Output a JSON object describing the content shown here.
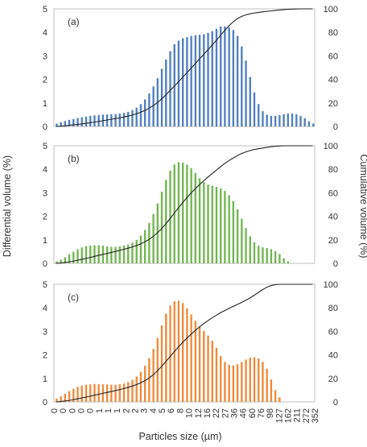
{
  "xlabel": "Particles size (µm)",
  "ylabel_left": "Differential volume (%)",
  "ylabel_right": "Cumulative volume (%)",
  "chart_data": [
    {
      "type": "bar",
      "panel": "(a)",
      "series": [
        {
          "name": "",
          "kind": "bar",
          "color": "#4f7fc0",
          "values": [
            0.12,
            0.18,
            0.23,
            0.28,
            0.32,
            0.36,
            0.39,
            0.42,
            0.45,
            0.47,
            0.49,
            0.5,
            0.51,
            0.52,
            0.53,
            0.55,
            0.58,
            0.62,
            0.7,
            0.8,
            0.95,
            1.15,
            1.4,
            1.7,
            2.05,
            2.45,
            2.85,
            3.2,
            3.5,
            3.65,
            3.75,
            3.8,
            3.85,
            3.88,
            3.9,
            3.92,
            3.98,
            4.05,
            4.15,
            4.25,
            4.25,
            4.22,
            4.1,
            3.85,
            3.4,
            2.8,
            2.1,
            1.45,
            0.95,
            0.65,
            0.5,
            0.45,
            0.45,
            0.48,
            0.52,
            0.55,
            0.55,
            0.52,
            0.45,
            0.35,
            0.22,
            0.12
          ]
        },
        {
          "name": "",
          "kind": "line",
          "color": "#222222",
          "values": [
            0,
            0.2,
            0.5,
            0.9,
            1.3,
            1.7,
            2.1,
            2.6,
            3.1,
            3.6,
            4.2,
            4.8,
            5.4,
            6,
            6.6,
            7.2,
            7.9,
            8.7,
            9.6,
            10.6,
            11.9,
            13.4,
            15.2,
            17.4,
            20,
            23,
            26.4,
            30.1,
            33.8,
            37.5,
            41.4,
            45.2,
            49.1,
            53,
            56.9,
            60.8,
            64.7,
            68.7,
            72.8,
            77,
            81.2,
            85.2,
            88.6,
            91.3,
            93.4,
            94.8,
            95.7,
            96.4,
            96.9,
            97.4,
            97.8,
            98.2,
            98.6,
            99,
            99.3,
            99.6,
            99.8,
            99.9,
            100,
            100,
            100,
            100
          ]
        }
      ]
    },
    {
      "type": "bar",
      "panel": "(b)",
      "series": [
        {
          "name": "",
          "kind": "bar",
          "color": "#70b550",
          "values": [
            0.08,
            0.16,
            0.26,
            0.38,
            0.5,
            0.6,
            0.68,
            0.73,
            0.76,
            0.77,
            0.77,
            0.75,
            0.72,
            0.7,
            0.7,
            0.72,
            0.76,
            0.8,
            0.88,
            1,
            1.18,
            1.42,
            1.72,
            2.1,
            2.55,
            3.05,
            3.55,
            3.95,
            4.2,
            4.3,
            4.28,
            4.2,
            4.05,
            3.85,
            3.62,
            3.45,
            3.35,
            3.3,
            3.25,
            3.18,
            3.08,
            2.9,
            2.65,
            2.3,
            1.9,
            1.5,
            1.15,
            0.9,
            0.75,
            0.68,
            0.65,
            0.6,
            0.52,
            0.4,
            0.22,
            0.08
          ]
        },
        {
          "name": "",
          "kind": "line",
          "color": "#222222",
          "values": [
            0,
            0.3,
            0.7,
            1.2,
            1.8,
            2.5,
            3.3,
            4.1,
            4.9,
            5.8,
            6.7,
            7.5,
            8.3,
            9.2,
            10,
            10.9,
            11.8,
            12.8,
            13.8,
            15,
            16.4,
            18.1,
            20.1,
            22.6,
            25.6,
            29.1,
            33.1,
            37.5,
            42.1,
            46.7,
            51.1,
            55.4,
            59.4,
            63.1,
            66.6,
            69.8,
            73,
            76,
            78.9,
            81.8,
            84.6,
            87.1,
            89.4,
            91.4,
            93.2,
            94.6,
            95.8,
            96.7,
            97.4,
            98,
            98.6,
            99.1,
            99.5,
            99.8,
            100,
            100,
            100,
            100,
            100,
            100,
            100,
            100
          ]
        }
      ]
    },
    {
      "type": "bar",
      "panel": "(c)",
      "series": [
        {
          "name": "",
          "kind": "bar",
          "color": "#ee8a3a",
          "values": [
            0.14,
            0.24,
            0.35,
            0.46,
            0.56,
            0.64,
            0.7,
            0.73,
            0.75,
            0.76,
            0.76,
            0.75,
            0.74,
            0.73,
            0.73,
            0.75,
            0.78,
            0.84,
            0.94,
            1.08,
            1.28,
            1.54,
            1.86,
            2.25,
            2.72,
            3.25,
            3.75,
            4.1,
            4.28,
            4.3,
            4.2,
            3.98,
            3.72,
            3.45,
            3.22,
            3.02,
            2.82,
            2.6,
            2.3,
            1.95,
            1.7,
            1.58,
            1.55,
            1.6,
            1.7,
            1.8,
            1.88,
            1.9,
            1.85,
            1.7,
            1.4,
            0.95,
            0.5,
            0.2
          ]
        },
        {
          "name": "",
          "kind": "line",
          "color": "#222222",
          "values": [
            0,
            0.3,
            0.7,
            1.2,
            1.8,
            2.5,
            3.2,
            4,
            4.8,
            5.6,
            6.4,
            7.2,
            7.9,
            8.7,
            9.5,
            10.3,
            11.2,
            12.2,
            13.3,
            14.5,
            16,
            17.8,
            20,
            22.7,
            26,
            29.8,
            33.8,
            38,
            42.2,
            46.3,
            50.2,
            53.8,
            57.2,
            60.4,
            63.4,
            66.2,
            68.8,
            71.2,
            73.5,
            75.6,
            77.5,
            79.3,
            81,
            82.7,
            84.4,
            86.2,
            88.2,
            90.4,
            92.8,
            95.2,
            97.3,
            98.8,
            99.6,
            100,
            100,
            100,
            100,
            100,
            100,
            100,
            100,
            100
          ]
        }
      ]
    }
  ],
  "x_tick_labels": [
    "0",
    "0",
    "0",
    "0",
    "0",
    "1",
    "1",
    "1",
    "2",
    "2",
    "3",
    "4",
    "5",
    "6",
    "8",
    "10",
    "12",
    "16",
    "22",
    "27",
    "36",
    "46",
    "60",
    "76",
    "98",
    "127",
    "162",
    "211",
    "272",
    "352"
  ],
  "y_left": {
    "min": 0,
    "max": 5,
    "ticks": [
      "0",
      "1",
      "2",
      "3",
      "4",
      "5"
    ]
  },
  "y_right": {
    "min": 0,
    "max": 100,
    "ticks": [
      "0",
      "20",
      "40",
      "60",
      "80",
      "100"
    ]
  }
}
